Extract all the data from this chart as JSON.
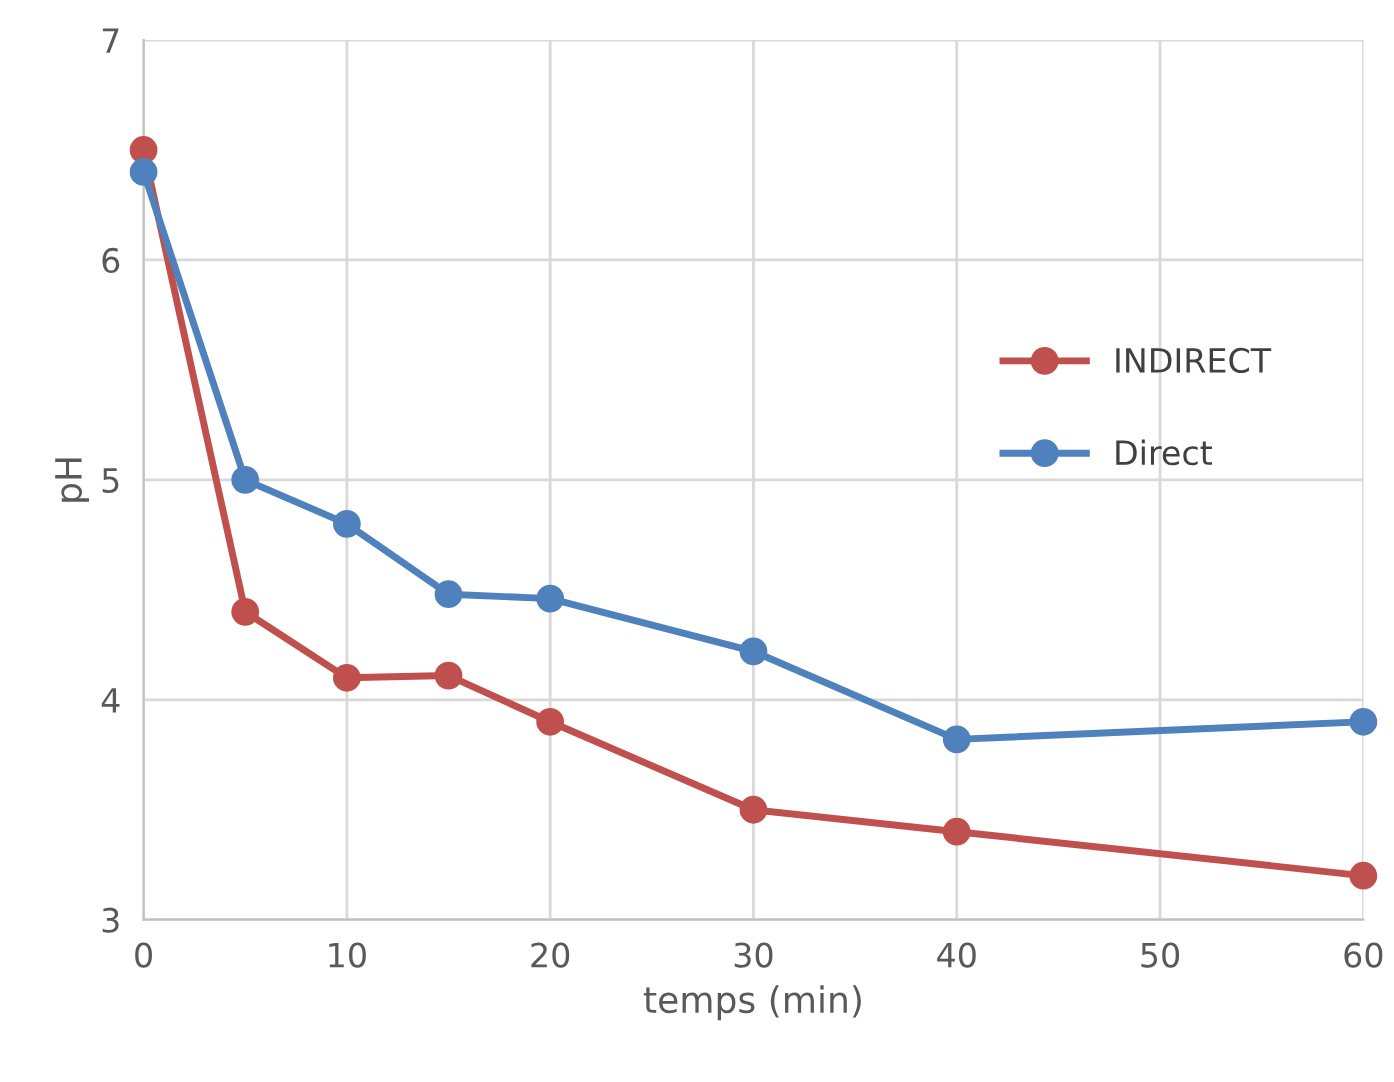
{
  "chart_data": {
    "type": "line",
    "xlabel": "temps (min)",
    "ylabel": "pH",
    "x": [
      0,
      5,
      10,
      15,
      20,
      30,
      40,
      60
    ],
    "series": [
      {
        "name": "INDIRECT",
        "color": "#c0504d",
        "values": [
          6.5,
          4.4,
          4.1,
          4.11,
          3.9,
          3.5,
          3.4,
          3.2
        ]
      },
      {
        "name": "Direct",
        "color": "#4f81bd",
        "values": [
          6.4,
          5.0,
          4.8,
          4.48,
          4.46,
          4.22,
          3.82,
          3.9
        ]
      }
    ],
    "xlim": [
      0,
      60
    ],
    "xticks": [
      0,
      10,
      20,
      30,
      40,
      50,
      60
    ],
    "ylim": [
      3,
      7
    ],
    "yticks": [
      3,
      4,
      5,
      6,
      7
    ],
    "grid": true,
    "legend": "right",
    "marker": "circle",
    "line_style": "solid"
  }
}
